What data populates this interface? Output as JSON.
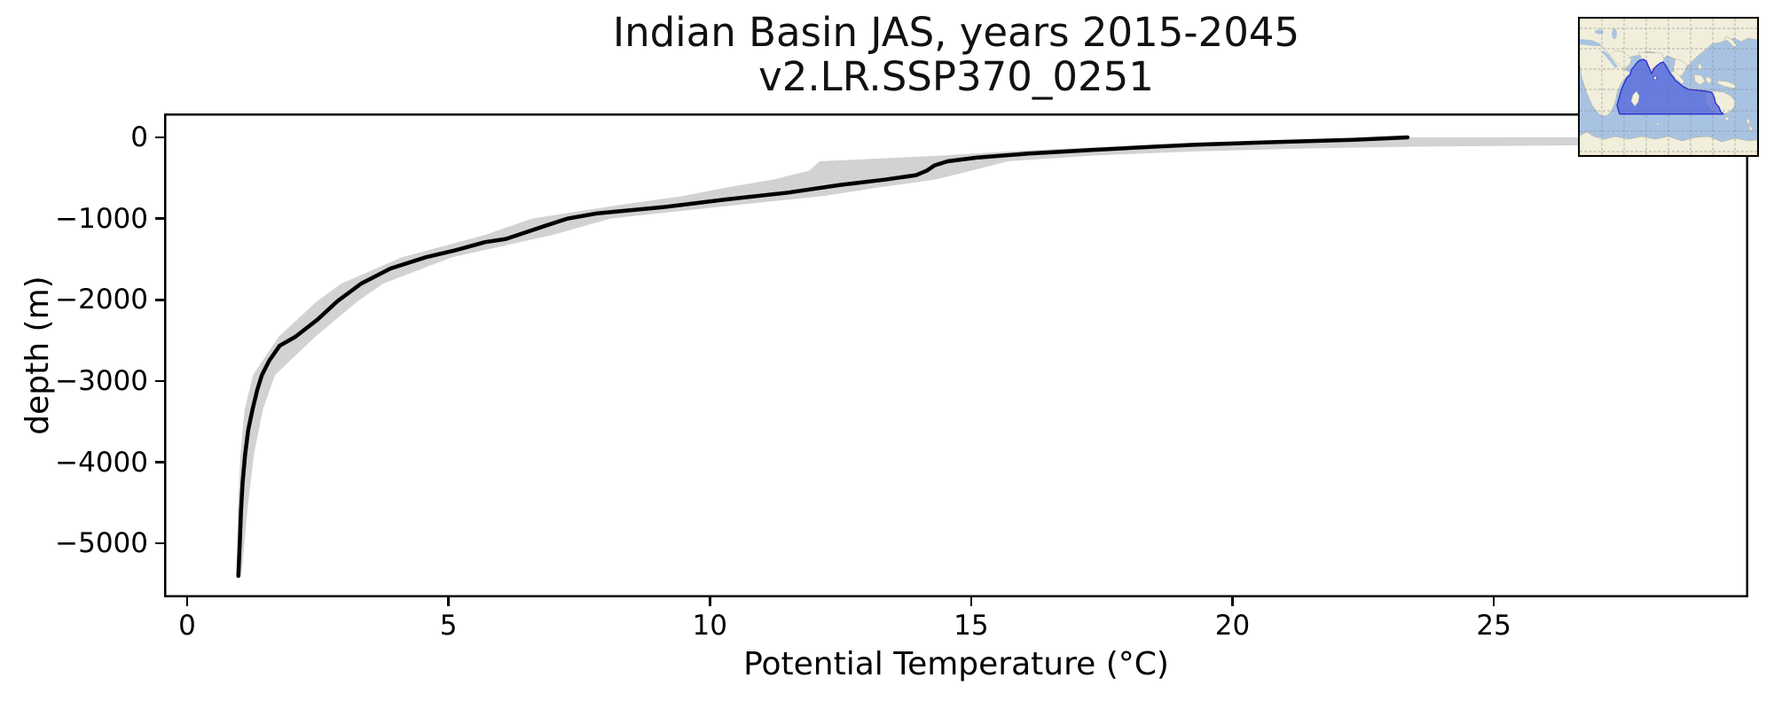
{
  "figure": {
    "title_line1": "Indian Basin JAS, years 2015-2045",
    "title_line2": "v2.LR.SSP370_0251",
    "xlabel": "Potential Temperature (°C)",
    "ylabel": "depth (m)",
    "background": "#ffffff"
  },
  "chart_data": {
    "type": "line",
    "title": "Indian Basin JAS, years 2015-2045",
    "subtitle": "v2.LR.SSP370_0251",
    "xlabel": "Potential Temperature (°C)",
    "ylabel": "depth (m)",
    "xlim": [
      -0.4,
      29.9
    ],
    "ylim": [
      -5660,
      275
    ],
    "grid": false,
    "legend": "none",
    "x_ticks": [
      {
        "v": 0,
        "label": "0"
      },
      {
        "v": 5,
        "label": "5"
      },
      {
        "v": 10,
        "label": "10"
      },
      {
        "v": 15,
        "label": "15"
      },
      {
        "v": 20,
        "label": "20"
      },
      {
        "v": 25,
        "label": "25"
      }
    ],
    "y_ticks": [
      {
        "v": 0,
        "label": "0"
      },
      {
        "v": -1000,
        "label": "−1000"
      },
      {
        "v": -2000,
        "label": "−2000"
      },
      {
        "v": -3000,
        "label": "−3000"
      },
      {
        "v": -4000,
        "label": "−4000"
      },
      {
        "v": -5000,
        "label": "−5000"
      }
    ],
    "series": [
      {
        "name": "ensemble-spread-band",
        "type": "band",
        "color": "#d2d2d2",
        "points_zminmax": [
          [
            0,
            22.7,
            29.9
          ],
          [
            -40,
            20.9,
            29.9
          ],
          [
            -80,
            19.2,
            29.9
          ],
          [
            -115,
            17.7,
            23.5
          ],
          [
            -135,
            16.9,
            21.5
          ],
          [
            -175,
            15.7,
            19.2
          ],
          [
            -225,
            14.4,
            17.3
          ],
          [
            -295,
            12.1,
            15.7
          ],
          [
            -410,
            11.9,
            15.0
          ],
          [
            -520,
            11.2,
            14.3
          ],
          [
            -620,
            10.3,
            13.2
          ],
          [
            -720,
            9.5,
            12.2
          ],
          [
            -820,
            8.4,
            10.7
          ],
          [
            -1000,
            6.6,
            8.1
          ],
          [
            -1200,
            5.7,
            7.0
          ],
          [
            -1475,
            4.11,
            5.07
          ],
          [
            -1800,
            2.95,
            3.75
          ],
          [
            -2020,
            2.48,
            3.26
          ],
          [
            -2455,
            1.75,
            2.45
          ],
          [
            -2925,
            1.26,
            1.68
          ],
          [
            -3350,
            1.1,
            1.45
          ],
          [
            -3900,
            1.02,
            1.28
          ],
          [
            -4600,
            0.97,
            1.15
          ],
          [
            -5250,
            0.95,
            1.06
          ],
          [
            -5400,
            0.94,
            1.03
          ]
        ]
      },
      {
        "name": "mean-profile",
        "type": "line",
        "color": "#000000",
        "points_tz": [
          [
            23.35,
            0
          ],
          [
            22.3,
            -30
          ],
          [
            20.7,
            -60
          ],
          [
            19.3,
            -90
          ],
          [
            18.5,
            -115
          ],
          [
            17.3,
            -155
          ],
          [
            16.1,
            -200
          ],
          [
            15.1,
            -250
          ],
          [
            14.55,
            -295
          ],
          [
            14.3,
            -345
          ],
          [
            14.15,
            -410
          ],
          [
            13.95,
            -465
          ],
          [
            13.35,
            -520
          ],
          [
            12.5,
            -585
          ],
          [
            11.5,
            -680
          ],
          [
            10.3,
            -765
          ],
          [
            9.1,
            -860
          ],
          [
            7.85,
            -935
          ],
          [
            7.28,
            -1000
          ],
          [
            6.8,
            -1100
          ],
          [
            6.1,
            -1250
          ],
          [
            5.7,
            -1290
          ],
          [
            5.13,
            -1390
          ],
          [
            4.57,
            -1475
          ],
          [
            3.89,
            -1615
          ],
          [
            3.33,
            -1800
          ],
          [
            2.87,
            -2020
          ],
          [
            2.5,
            -2240
          ],
          [
            2.07,
            -2455
          ],
          [
            1.77,
            -2565
          ],
          [
            1.57,
            -2750
          ],
          [
            1.43,
            -2925
          ],
          [
            1.34,
            -3110
          ],
          [
            1.25,
            -3350
          ],
          [
            1.17,
            -3600
          ],
          [
            1.11,
            -3900
          ],
          [
            1.06,
            -4250
          ],
          [
            1.03,
            -4600
          ],
          [
            1.01,
            -4950
          ],
          [
            0.99,
            -5250
          ],
          [
            0.98,
            -5400
          ]
        ]
      }
    ]
  },
  "inset_map": {
    "description": "Indian Ocean basin location map",
    "colors": {
      "ocean": "#a8c3e2",
      "land": "#f1eedb",
      "land_edge": "#b3af97",
      "grid": "#8f8f8f",
      "region_fill": "#5668db",
      "region_edge": "#2a2fd0",
      "border": "#000000"
    }
  }
}
